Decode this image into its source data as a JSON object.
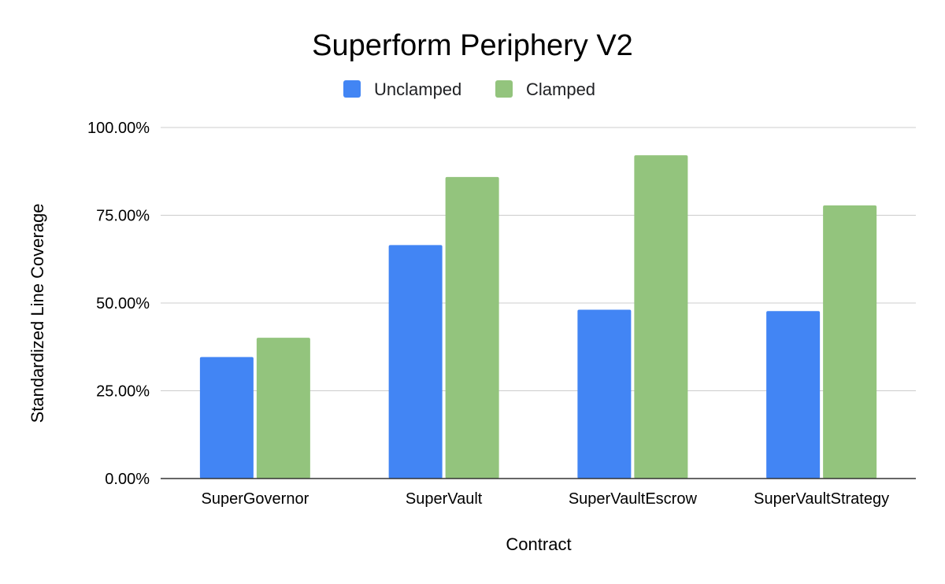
{
  "chart_data": {
    "type": "bar",
    "title": "Superform Periphery V2",
    "xlabel": "Contract",
    "ylabel": "Standardized Line Coverage",
    "categories": [
      "SuperGovernor",
      "SuperVault",
      "SuperVaultEscrow",
      "SuperVaultStrategy"
    ],
    "series": [
      {
        "name": "Unclamped",
        "color": "#4285f4",
        "values": [
          34.6,
          66.5,
          48.1,
          47.7
        ]
      },
      {
        "name": "Clamped",
        "color": "#93c47d",
        "values": [
          40.1,
          85.9,
          92.1,
          77.8
        ]
      }
    ],
    "ylim": [
      0,
      100
    ],
    "yticks": [
      0,
      25,
      50,
      75,
      100
    ],
    "ytick_labels": [
      "0.00%",
      "25.00%",
      "50.00%",
      "75.00%",
      "100.00%"
    ],
    "grid": true,
    "legend_position": "top-center"
  }
}
